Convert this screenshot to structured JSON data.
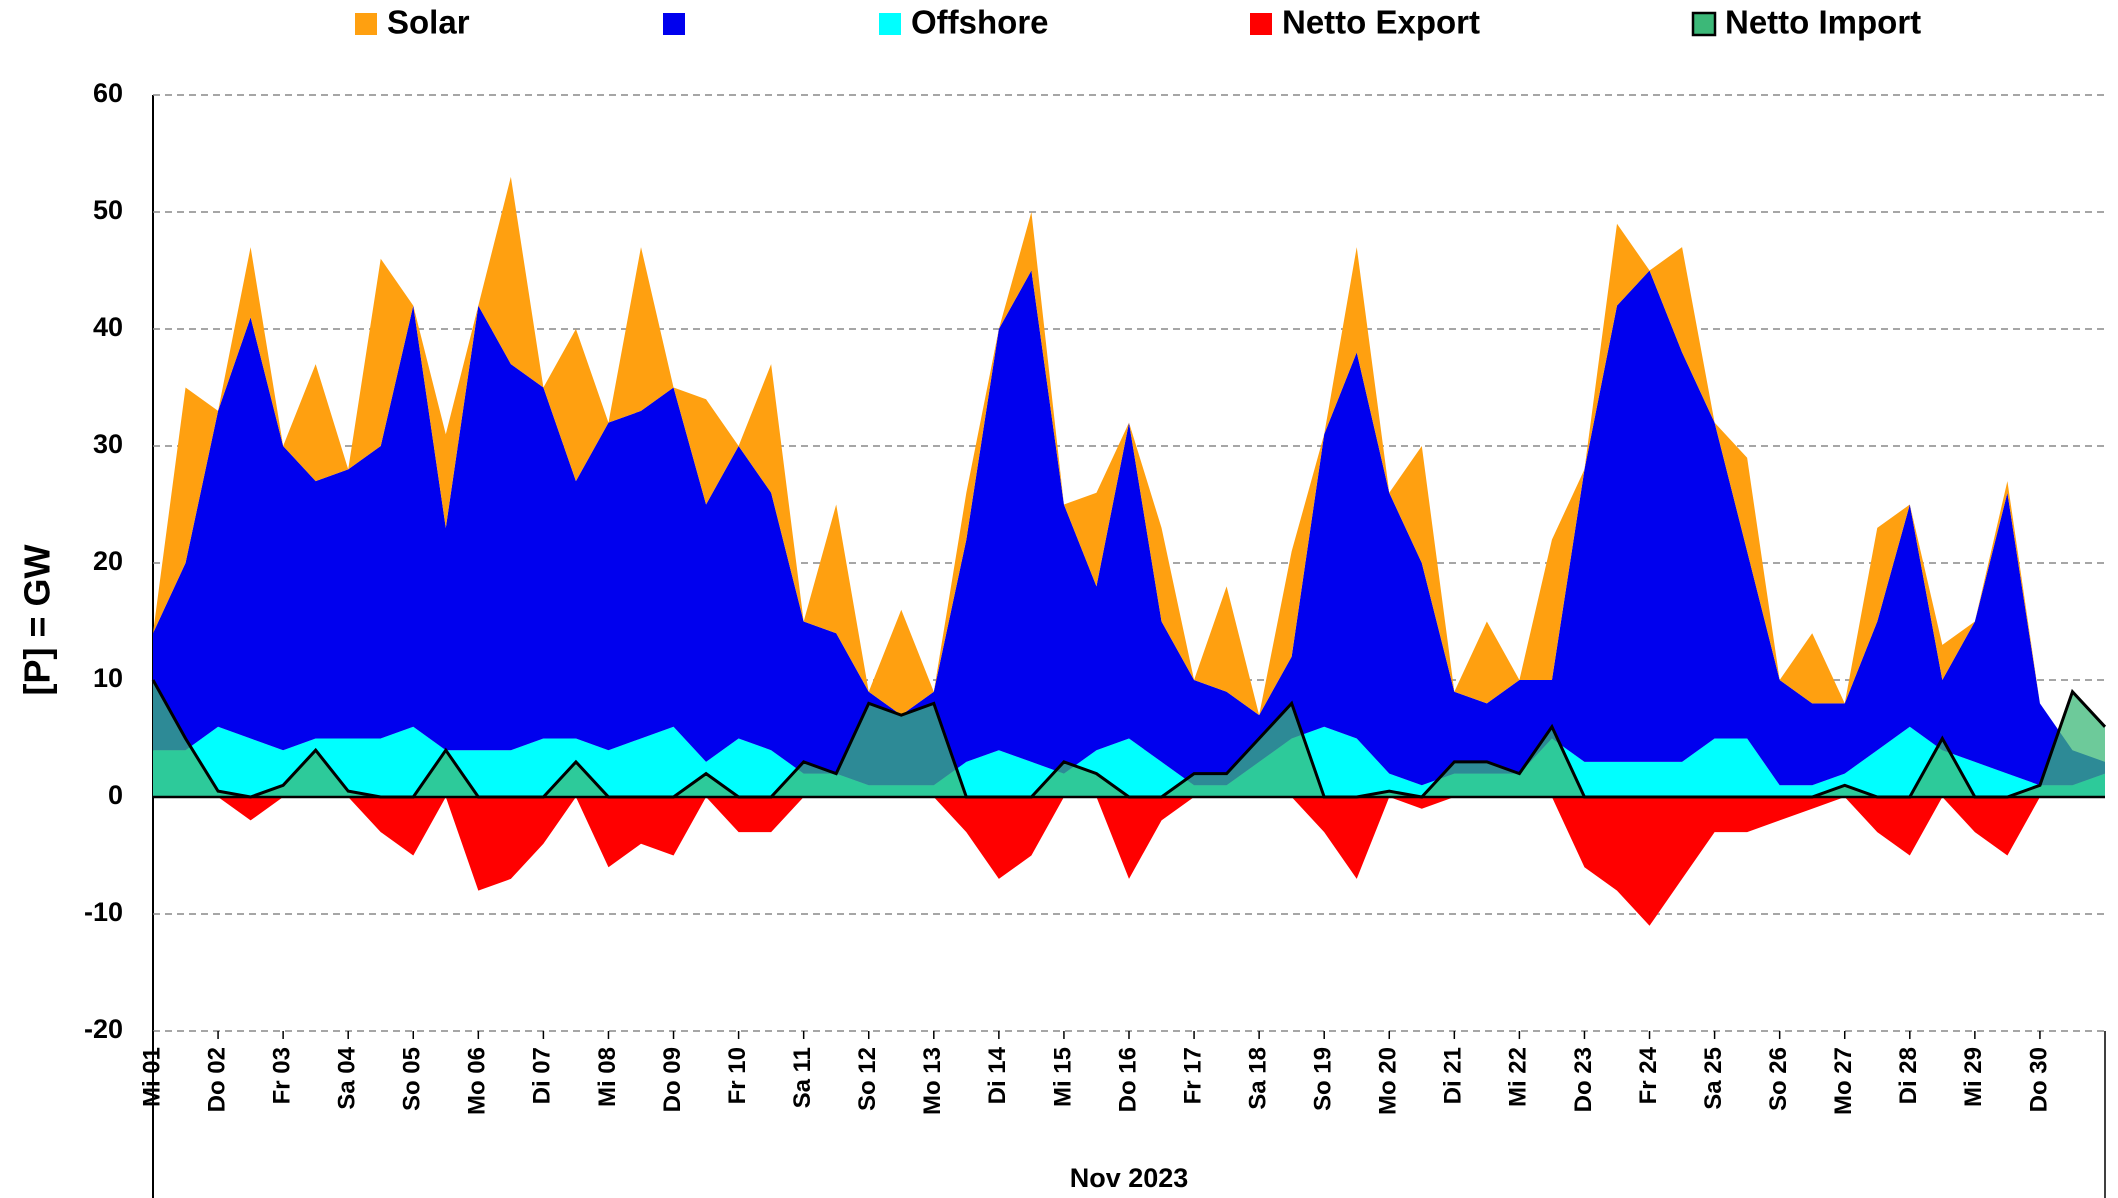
{
  "chart_data": {
    "type": "area",
    "ylabel": "[P] = GW",
    "xlabel": "Nov 2023",
    "x": [
      0,
      0.5,
      1,
      1.5,
      2,
      2.5,
      3,
      3.5,
      4,
      4.5,
      5,
      5.5,
      6,
      6.5,
      7,
      7.5,
      8,
      8.5,
      9,
      9.5,
      10,
      10.5,
      11,
      11.5,
      12,
      12.5,
      13,
      13.5,
      14,
      14.5,
      15,
      15.5,
      16,
      16.5,
      17,
      17.5,
      18,
      18.5,
      19,
      19.5,
      20,
      20.5,
      21,
      21.5,
      22,
      22.5,
      23,
      23.5,
      24,
      24.5,
      25,
      25.5,
      26,
      26.5,
      27,
      27.5,
      28,
      28.5,
      29,
      29.5,
      30
    ],
    "xlim": [
      0,
      30
    ],
    "xticks": [
      {
        "value": 0,
        "label": "Mi 01"
      },
      {
        "value": 1,
        "label": "Do 02"
      },
      {
        "value": 2,
        "label": "Fr 03"
      },
      {
        "value": 3,
        "label": "Sa 04"
      },
      {
        "value": 4,
        "label": "So 05"
      },
      {
        "value": 5,
        "label": "Mo 06"
      },
      {
        "value": 6,
        "label": "Di 07"
      },
      {
        "value": 7,
        "label": "Mi 08"
      },
      {
        "value": 8,
        "label": "Do 09"
      },
      {
        "value": 9,
        "label": "Fr 10"
      },
      {
        "value": 10,
        "label": "Sa 11"
      },
      {
        "value": 11,
        "label": "So 12"
      },
      {
        "value": 12,
        "label": "Mo 13"
      },
      {
        "value": 13,
        "label": "Di 14"
      },
      {
        "value": 14,
        "label": "Mi 15"
      },
      {
        "value": 15,
        "label": "Do 16"
      },
      {
        "value": 16,
        "label": "Fr 17"
      },
      {
        "value": 17,
        "label": "Sa 18"
      },
      {
        "value": 18,
        "label": "So 19"
      },
      {
        "value": 19,
        "label": "Mo 20"
      },
      {
        "value": 20,
        "label": "Di 21"
      },
      {
        "value": 21,
        "label": "Mi 22"
      },
      {
        "value": 22,
        "label": "Do 23"
      },
      {
        "value": 23,
        "label": "Fr 24"
      },
      {
        "value": 24,
        "label": "Sa 25"
      },
      {
        "value": 25,
        "label": "So 26"
      },
      {
        "value": 26,
        "label": "Mo 27"
      },
      {
        "value": 27,
        "label": "Di 28"
      },
      {
        "value": 28,
        "label": "Mi 29"
      },
      {
        "value": 29,
        "label": "Do 30"
      }
    ],
    "ylim": [
      -20,
      60
    ],
    "yticks": [
      -20,
      -10,
      0,
      10,
      20,
      30,
      40,
      50,
      60
    ],
    "grid": true,
    "legend": "top",
    "series": [
      {
        "name": "Solar",
        "color": "#ffa010",
        "stacked": true,
        "values": [
          0,
          15,
          0,
          6,
          0,
          10,
          0,
          16,
          0,
          8,
          0,
          16,
          0,
          13,
          0,
          14,
          0,
          9,
          0,
          11,
          0,
          11,
          0,
          9,
          0,
          4,
          0,
          5,
          0,
          8,
          0,
          8,
          0,
          9,
          0,
          9,
          0,
          9,
          0,
          10,
          0,
          7,
          0,
          12,
          0,
          7,
          0,
          9,
          0,
          8,
          0,
          6,
          0,
          8,
          0,
          3,
          0,
          1,
          0,
          0,
          0
        ]
      },
      {
        "name": null,
        "color": "#0000ee",
        "stacked": true,
        "values": [
          10,
          16,
          27,
          36,
          26,
          22,
          23,
          25,
          36,
          19,
          38,
          33,
          30,
          22,
          28,
          28,
          29,
          22,
          25,
          22,
          13,
          12,
          8,
          6,
          8,
          19,
          36,
          42,
          23,
          14,
          27,
          12,
          9,
          8,
          4,
          7,
          25,
          33,
          24,
          19,
          7,
          6,
          8,
          5,
          25,
          39,
          42,
          35,
          27,
          16,
          9,
          7,
          6,
          11,
          19,
          6,
          12,
          24,
          7,
          3,
          1
        ]
      },
      {
        "name": "Offshore",
        "color": "#00ffff",
        "stacked": true,
        "values": [
          4,
          4,
          6,
          5,
          4,
          5,
          5,
          5,
          6,
          4,
          4,
          4,
          5,
          5,
          4,
          5,
          6,
          3,
          5,
          4,
          2,
          2,
          1,
          1,
          1,
          3,
          4,
          3,
          2,
          4,
          5,
          3,
          1,
          1,
          3,
          5,
          6,
          5,
          2,
          1,
          2,
          2,
          2,
          5,
          3,
          3,
          3,
          3,
          5,
          5,
          1,
          1,
          2,
          4,
          6,
          4,
          3,
          2,
          1,
          1,
          2
        ]
      },
      {
        "name": "Netto Export",
        "color": "#ff0000",
        "stacked": false,
        "values": [
          0,
          0,
          0,
          -2,
          0,
          0,
          0,
          -3,
          -5,
          0,
          -8,
          -7,
          -4,
          0,
          -6,
          -4,
          -5,
          0,
          -3,
          -3,
          0,
          0,
          0,
          0,
          0,
          -3,
          -7,
          -5,
          0,
          0,
          -7,
          -2,
          0,
          0,
          0,
          0,
          -3,
          -7,
          0,
          -1,
          0,
          0,
          0,
          0,
          -6,
          -8,
          -11,
          -7,
          -3,
          -3,
          -2,
          -1,
          0,
          -3,
          -5,
          0,
          -3,
          -5,
          0,
          0,
          0
        ]
      },
      {
        "name": "Netto Import",
        "color": "#3cb878",
        "line_color": "#000000",
        "stacked": false,
        "values": [
          10,
          5,
          0.5,
          0,
          1,
          4,
          0.5,
          0,
          0,
          4,
          0,
          0,
          0,
          3,
          0,
          0,
          0,
          2,
          0,
          0,
          3,
          2,
          8,
          7,
          8,
          0,
          0,
          0,
          3,
          2,
          0,
          0,
          2,
          2,
          5,
          8,
          0,
          0,
          0.5,
          0,
          3,
          3,
          2,
          6,
          0,
          0,
          0,
          0,
          0,
          0,
          0,
          0,
          1,
          0,
          0,
          5,
          0,
          0,
          1,
          9,
          6
        ]
      }
    ]
  }
}
